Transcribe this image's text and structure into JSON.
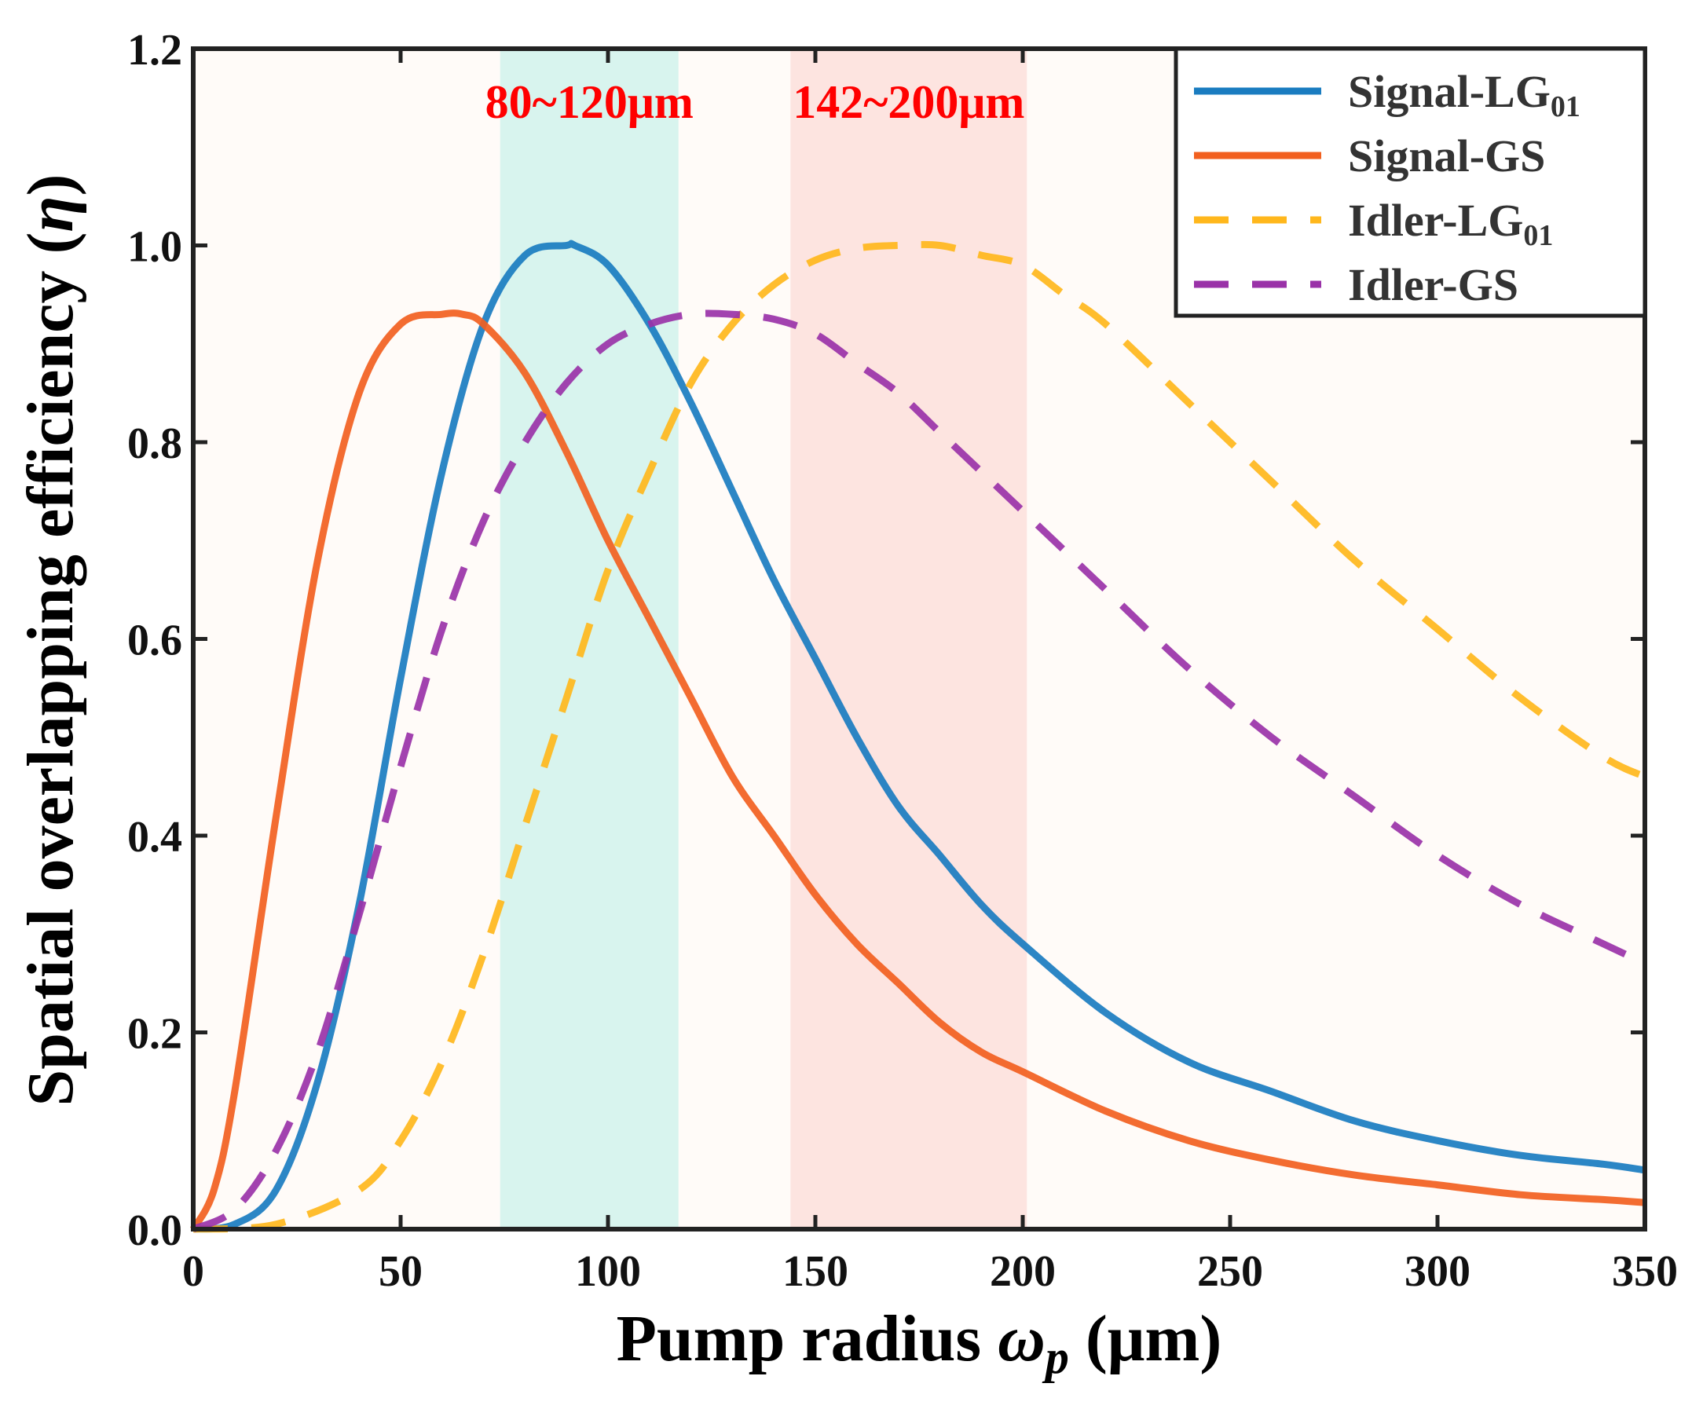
{
  "chart_data": {
    "type": "line",
    "xlabel_prefix": "Pump radius ",
    "xlabel_symbol": "ω",
    "xlabel_sub": "p",
    "xlabel_suffix": " (μm)",
    "ylabel_prefix": "Spatial overlapping efficiency (",
    "ylabel_symbol": "η",
    "ylabel_suffix": ")",
    "xlim": [
      0,
      350
    ],
    "ylim": [
      0,
      1.2
    ],
    "x_ticks": [
      "0",
      "50",
      "100",
      "150",
      "200",
      "250",
      "300",
      "350"
    ],
    "y_ticks": [
      "0.0",
      "0.2",
      "0.4",
      "0.6",
      "0.8",
      "1.0",
      "1.2"
    ],
    "shaded_regions": [
      {
        "x0": 74,
        "x1": 117,
        "label": "80~120μm",
        "color": "#d8f4ee"
      },
      {
        "x0": 144,
        "x1": 201,
        "label": "142~200μm",
        "color": "#fde4e0"
      }
    ],
    "background_color": "#fffbf8",
    "legend_position": "top-right",
    "series": [
      {
        "name_main": "Signal-LG",
        "name_sub": "01",
        "color": "#1a7cc0",
        "dash": "solid",
        "x": [
          0,
          10,
          20,
          30,
          40,
          50,
          60,
          70,
          80,
          90,
          92,
          100,
          110,
          120,
          130,
          140,
          150,
          160,
          170,
          180,
          190,
          200,
          220,
          240,
          260,
          280,
          300,
          320,
          340,
          350
        ],
        "values": [
          0.0,
          0.005,
          0.04,
          0.15,
          0.33,
          0.56,
          0.77,
          0.92,
          0.99,
          1.0,
          1.0,
          0.98,
          0.92,
          0.84,
          0.75,
          0.66,
          0.58,
          0.5,
          0.43,
          0.38,
          0.33,
          0.29,
          0.22,
          0.17,
          0.14,
          0.11,
          0.09,
          0.075,
          0.066,
          0.06
        ]
      },
      {
        "name_main": "Signal-GS",
        "name_sub": "",
        "color": "#f2601f",
        "dash": "solid",
        "x": [
          0,
          5,
          10,
          20,
          30,
          40,
          50,
          60,
          65,
          70,
          80,
          90,
          100,
          110,
          120,
          130,
          140,
          150,
          160,
          170,
          180,
          190,
          200,
          220,
          240,
          260,
          280,
          300,
          320,
          340,
          350
        ],
        "values": [
          0.0,
          0.04,
          0.14,
          0.42,
          0.68,
          0.85,
          0.92,
          0.93,
          0.93,
          0.92,
          0.87,
          0.79,
          0.7,
          0.62,
          0.54,
          0.46,
          0.4,
          0.34,
          0.29,
          0.25,
          0.21,
          0.18,
          0.16,
          0.12,
          0.09,
          0.07,
          0.055,
          0.045,
          0.035,
          0.03,
          0.027
        ]
      },
      {
        "name_main": "Idler-LG",
        "name_sub": "01",
        "color": "#ffb71c",
        "dash": "dashed",
        "x": [
          0,
          20,
          40,
          50,
          60,
          70,
          80,
          90,
          100,
          110,
          120,
          130,
          140,
          150,
          160,
          170,
          180,
          190,
          200,
          210,
          220,
          240,
          260,
          280,
          300,
          320,
          340,
          350
        ],
        "values": [
          0.0,
          0.005,
          0.04,
          0.09,
          0.17,
          0.28,
          0.41,
          0.54,
          0.67,
          0.77,
          0.86,
          0.92,
          0.96,
          0.985,
          0.997,
          1.0,
          1.0,
          0.99,
          0.98,
          0.95,
          0.92,
          0.84,
          0.76,
          0.68,
          0.61,
          0.54,
          0.48,
          0.46
        ]
      },
      {
        "name_main": "Idler-GS",
        "name_sub": "",
        "color": "#9a32a8",
        "dash": "dashed",
        "x": [
          0,
          10,
          20,
          30,
          40,
          50,
          60,
          70,
          80,
          90,
          100,
          110,
          120,
          130,
          140,
          150,
          160,
          170,
          180,
          190,
          200,
          220,
          240,
          260,
          280,
          300,
          320,
          340,
          350
        ],
        "values": [
          0.0,
          0.02,
          0.08,
          0.18,
          0.32,
          0.47,
          0.61,
          0.72,
          0.8,
          0.86,
          0.9,
          0.92,
          0.93,
          0.93,
          0.925,
          0.91,
          0.88,
          0.85,
          0.81,
          0.77,
          0.73,
          0.65,
          0.57,
          0.5,
          0.44,
          0.38,
          0.33,
          0.29,
          0.27
        ]
      }
    ]
  }
}
